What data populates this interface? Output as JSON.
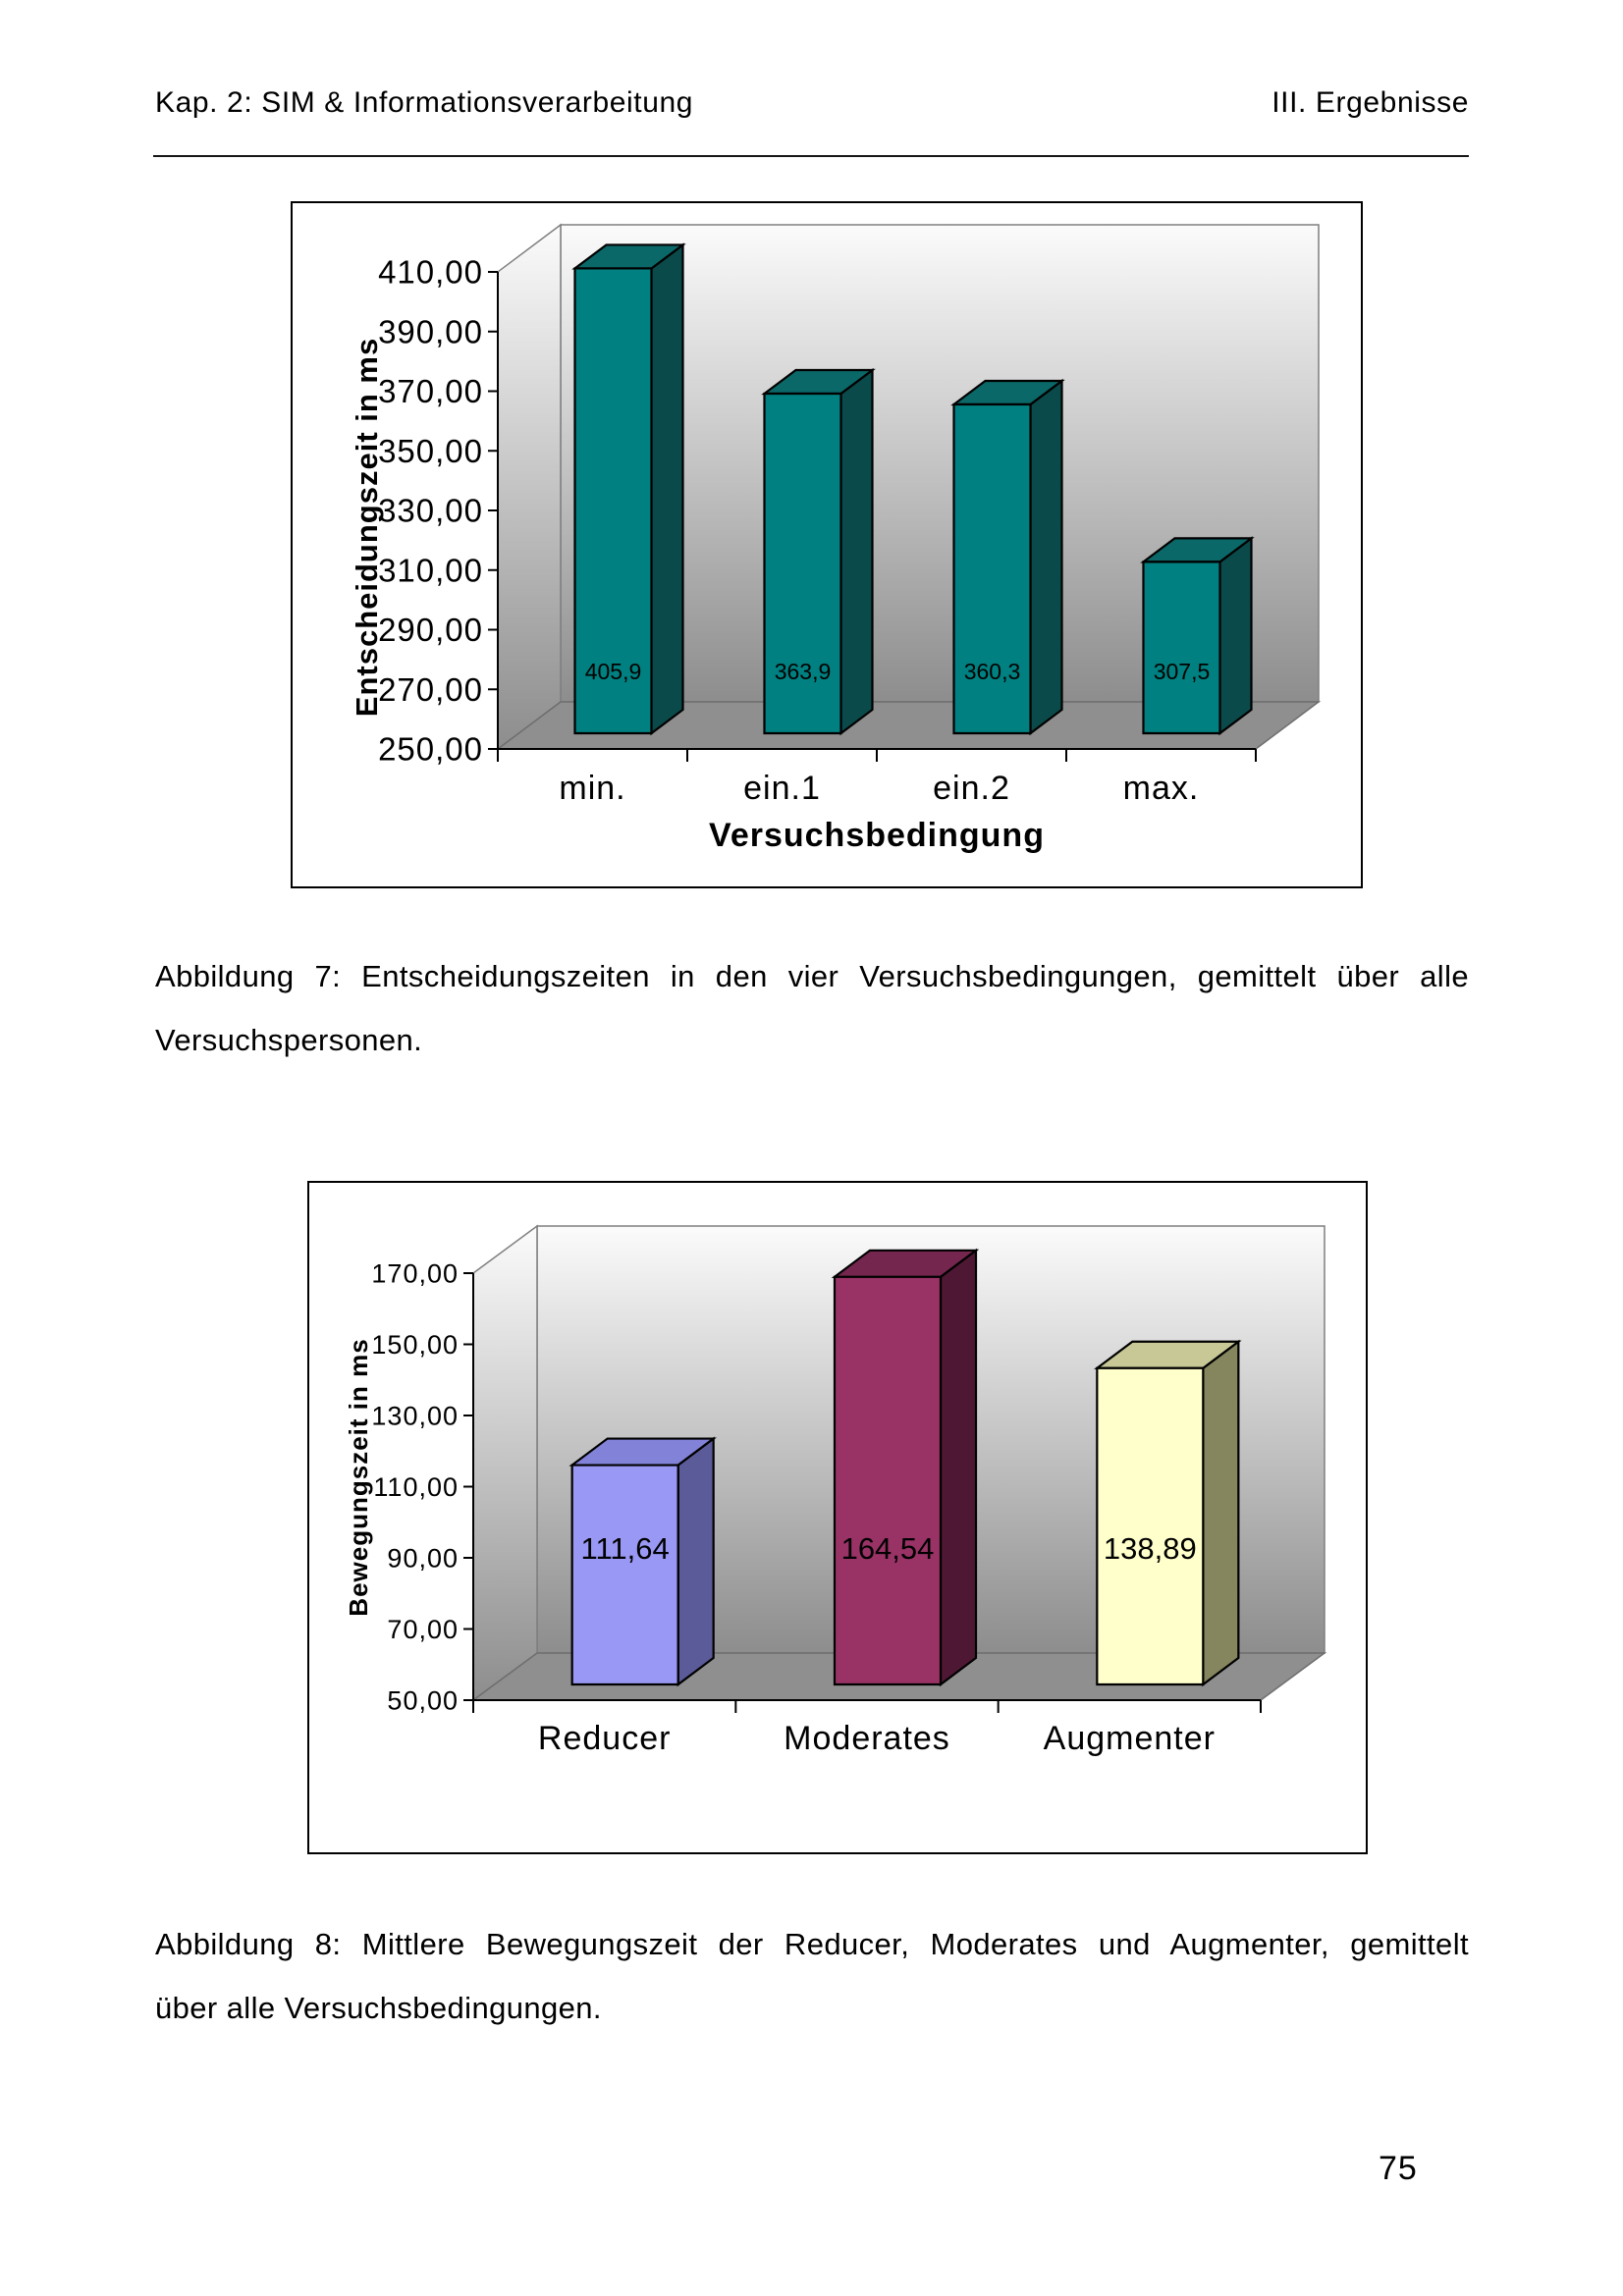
{
  "page": {
    "header": {
      "left": "Kap. 2: SIM & Informationsverarbeitung",
      "right": "III. Ergebnisse"
    },
    "page_number": "75"
  },
  "figures": [
    {
      "caption_lines": [
        "Abbildung 7: Entscheidungszeiten in den vier Versuchsbedingungen, gemittelt über alle",
        "Versuchspersonen."
      ]
    },
    {
      "caption_lines": [
        "Abbildung 8: Mittlere Bewegungszeit der Reducer, Moderates und Augmenter, gemittelt",
        "über alle Versuchsbedingungen."
      ]
    }
  ],
  "chart_data": [
    {
      "type": "bar",
      "variant": "3d-column",
      "title": "",
      "xlabel": "Versuchsbedingung",
      "ylabel": "Entscheidungszeit in ms",
      "categories": [
        "min.",
        "ein.1",
        "ein.2",
        "max."
      ],
      "values": [
        405.9,
        363.9,
        360.3,
        307.5
      ],
      "value_labels": [
        "405,9",
        "363,9",
        "360,3",
        "307,5"
      ],
      "ylim": [
        250,
        410
      ],
      "ytick_step": 20,
      "ytick_labels": [
        "250,00",
        "270,00",
        "290,00",
        "310,00",
        "330,00",
        "350,00",
        "370,00",
        "390,00",
        "410,00"
      ],
      "grid": false,
      "legend": "none",
      "bar_colors": [
        {
          "front": "#008080",
          "top": "#0B6868",
          "side": "#0B4A4A"
        }
      ],
      "wall_gradient": [
        "#FBFBFB",
        "#8D8D8D"
      ],
      "floor_color": "#8F8F8F"
    },
    {
      "type": "bar",
      "variant": "3d-column",
      "title": "",
      "xlabel": "",
      "ylabel": "Bewegungszeit in ms",
      "categories": [
        "Reducer",
        "Moderates",
        "Augmenter"
      ],
      "values": [
        111.64,
        164.54,
        138.89
      ],
      "value_labels": [
        "111,64",
        "164,54",
        "138,89"
      ],
      "ylim": [
        50,
        170
      ],
      "ytick_step": 20,
      "ytick_labels": [
        "50,00",
        "70,00",
        "90,00",
        "110,00",
        "130,00",
        "150,00",
        "170,00"
      ],
      "grid": false,
      "legend": "none",
      "bar_colors": [
        {
          "front": "#9999F5",
          "top": "#8282D8",
          "side": "#5B5B99"
        },
        {
          "front": "#993366",
          "top": "#75264E",
          "side": "#4E1834"
        },
        {
          "front": "#FFFFCC",
          "top": "#C8C896",
          "side": "#85855E"
        }
      ],
      "wall_gradient": [
        "#FBFBFB",
        "#8D8D8D"
      ],
      "floor_color": "#8F8F8F"
    }
  ]
}
